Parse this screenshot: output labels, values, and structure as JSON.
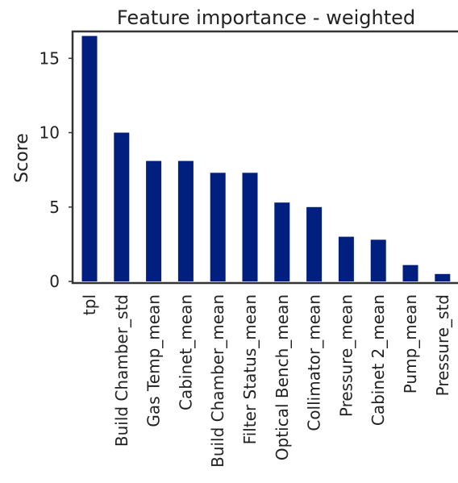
{
  "chart_data": {
    "type": "bar",
    "title": "Feature importance - weighted",
    "xlabel": "",
    "ylabel": "Score",
    "categories": [
      "tpl",
      "Build Chamber_std",
      "Gas Temp_mean",
      "Cabinet_mean",
      "Build Chamber_mean",
      "Filter Status_mean",
      "Optical Bench_mean",
      "Collimator_mean",
      "Pressure_mean",
      "Cabinet 2_mean",
      "Pump_mean",
      "Pressure_std"
    ],
    "values": [
      16.5,
      10.0,
      8.1,
      8.1,
      7.3,
      7.3,
      5.3,
      5.0,
      3.0,
      2.8,
      1.1,
      0.5
    ],
    "yticks": [
      "0",
      "5",
      "10",
      "15"
    ],
    "ylim": [
      0,
      17.5
    ],
    "grid": false,
    "bar_color": "#001f7e"
  }
}
